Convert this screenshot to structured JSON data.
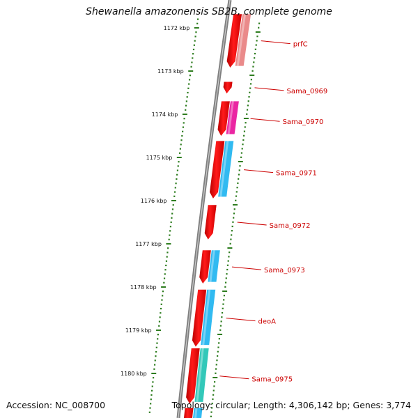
{
  "title": "Shewanella amazonensis SB2B, complete genome",
  "accession": "Accession: NC_008700",
  "topology_info": "Topology: circular; Length: 4,306,142 bp; Genes: 3,774",
  "colors": {
    "backbone": "#808080",
    "ticks": "#2e7d1f",
    "forward_gene": "#e60000",
    "label": "#cc0000",
    "cyan": "#1fb4f0",
    "magenta": "#e8139a",
    "salmon": "#e88080",
    "teal": "#22c3b3"
  },
  "scale": {
    "tick_labels": [
      {
        "kbp": 1172,
        "text": "1172 kbp"
      },
      {
        "kbp": 1173,
        "text": "1173 kbp"
      },
      {
        "kbp": 1174,
        "text": "1174 kbp"
      },
      {
        "kbp": 1175,
        "text": "1175 kbp"
      },
      {
        "kbp": 1176,
        "text": "1176 kbp"
      },
      {
        "kbp": 1177,
        "text": "1177 kbp"
      },
      {
        "kbp": 1178,
        "text": "1178 kbp"
      },
      {
        "kbp": 1179,
        "text": "1179 kbp"
      },
      {
        "kbp": 1180,
        "text": "1180 kbp"
      }
    ]
  },
  "genes": [
    {
      "label": "prfC",
      "start_kbp": 1171.68,
      "end_kbp": 1172.92,
      "strand": 1,
      "cog_color": "#e88080"
    },
    {
      "label": "Sama_0969",
      "start_kbp": 1173.25,
      "end_kbp": 1173.52,
      "strand": 1,
      "cog_color": ""
    },
    {
      "label": "Sama_0970",
      "start_kbp": 1173.7,
      "end_kbp": 1174.5,
      "strand": 1,
      "cog_color": "#e8139a"
    },
    {
      "label": "Sama_0971",
      "start_kbp": 1174.62,
      "end_kbp": 1175.95,
      "strand": 1,
      "cog_color": "#1fb4f0"
    },
    {
      "label": "Sama_0972",
      "start_kbp": 1176.1,
      "end_kbp": 1176.9,
      "strand": 1,
      "cog_color": ""
    },
    {
      "label": "Sama_0973",
      "start_kbp": 1177.15,
      "end_kbp": 1177.92,
      "strand": 1,
      "cog_color": "#1fb4f0"
    },
    {
      "label": "deoA",
      "start_kbp": 1178.06,
      "end_kbp": 1179.38,
      "strand": 1,
      "cog_color": "#1fb4f0"
    },
    {
      "label": "Sama_0975",
      "start_kbp": 1179.42,
      "end_kbp": 1180.7,
      "strand": 1,
      "cog_color": "#22c3b3"
    },
    {
      "label": "",
      "start_kbp": 1180.8,
      "end_kbp": 1181.4,
      "strand": 1,
      "cog_color": "#1fb4f0"
    }
  ]
}
